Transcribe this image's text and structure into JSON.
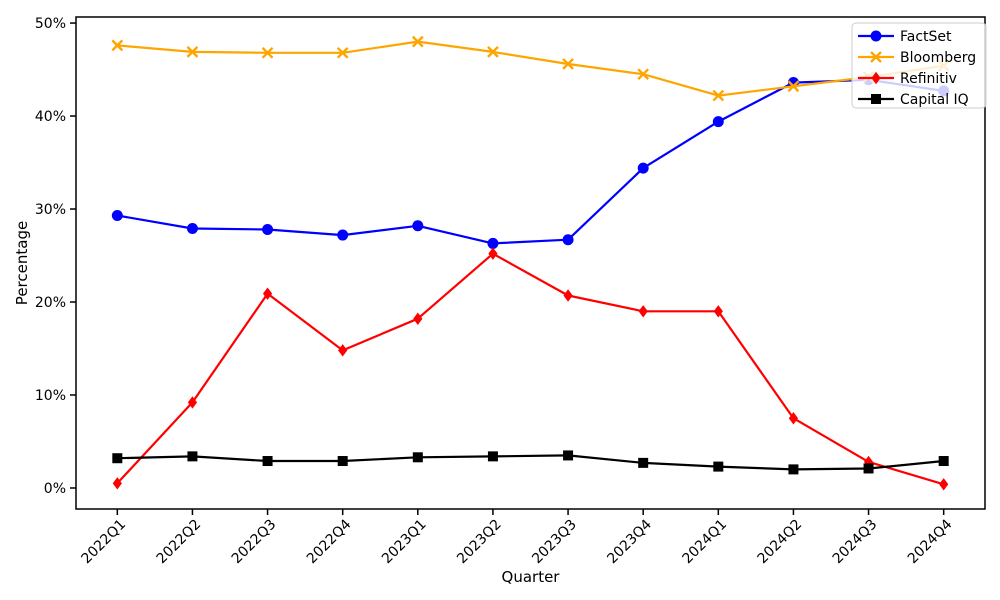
{
  "figure": {
    "background": "#ffffff"
  },
  "chart_data": {
    "type": "line",
    "title": "",
    "xlabel": "Quarter",
    "ylabel": "Percentage",
    "categories": [
      "2022Q1",
      "2022Q2",
      "2022Q3",
      "2022Q4",
      "2023Q1",
      "2023Q2",
      "2023Q3",
      "2023Q4",
      "2024Q1",
      "2024Q2",
      "2024Q3",
      "2024Q4"
    ],
    "yticks": [
      0,
      10,
      20,
      30,
      40,
      50
    ],
    "ytick_labels": [
      "0%",
      "10%",
      "20%",
      "30%",
      "40%",
      "50%"
    ],
    "ylim": [
      -2.26,
      50.65
    ],
    "grid": false,
    "legend_position": "upper right",
    "axis_color": "#000000",
    "legend_border_color": "#cccccc",
    "legend_background": "rgba(255,255,255,0.8)",
    "series": [
      {
        "name": "FactSet",
        "color": "#0000ff",
        "marker": "circle",
        "values": [
          29.3,
          27.9,
          27.8,
          27.2,
          28.2,
          26.3,
          26.7,
          34.4,
          39.4,
          43.6,
          43.9,
          42.7
        ]
      },
      {
        "name": "Bloomberg",
        "color": "#ffa500",
        "marker": "x",
        "values": [
          47.6,
          46.9,
          46.8,
          46.8,
          48.0,
          46.9,
          45.6,
          44.5,
          42.2,
          43.2,
          44.2,
          45.4
        ]
      },
      {
        "name": "Refinitiv",
        "color": "#ff0000",
        "marker": "diamond",
        "values": [
          0.5,
          9.2,
          20.9,
          14.8,
          18.2,
          25.2,
          20.7,
          19.0,
          19.0,
          7.5,
          2.8,
          0.4
        ]
      },
      {
        "name": "Capital IQ",
        "color": "#000000",
        "marker": "square",
        "values": [
          3.2,
          3.4,
          2.9,
          2.9,
          3.3,
          3.4,
          3.5,
          2.7,
          2.3,
          2.0,
          2.1,
          2.9
        ]
      }
    ]
  }
}
